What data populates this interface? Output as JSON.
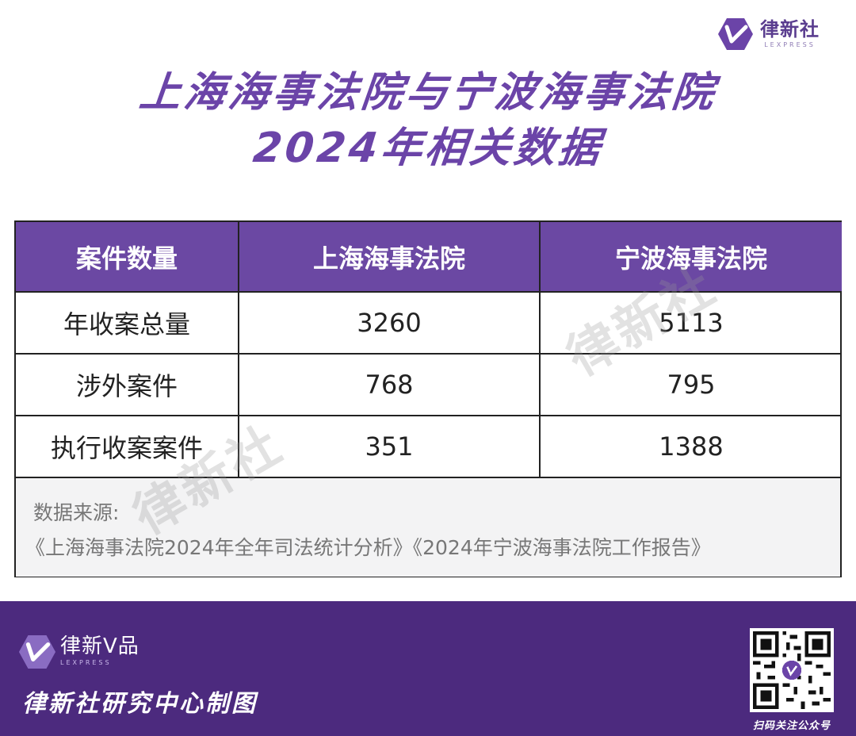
{
  "brand": {
    "name": "律新社",
    "sub": "LEXPRESS",
    "color": "#6b44a8"
  },
  "title": {
    "line1": "上海海事法院与宁波海事法院",
    "line2": "2024年相关数据"
  },
  "table": {
    "headers": [
      "案件数量",
      "上海海事法院",
      "宁波海事法院"
    ],
    "rows": [
      [
        "年收案总量",
        "3260",
        "5113"
      ],
      [
        "涉外案件",
        "768",
        "795"
      ],
      [
        "执行收案案件",
        "351",
        "1388"
      ]
    ],
    "source_label": "数据来源:",
    "source_text": "《上海海事法院2024年全年司法统计分析》《2024年宁波海事法院工作报告》"
  },
  "watermark": "律新社",
  "footer": {
    "brand_name": "律新V品",
    "brand_sub": "LEXPRESS",
    "caption": "律新社研究中心制图",
    "qr_caption": "扫码关注公众号",
    "bg_color": "#4c2a7e"
  }
}
